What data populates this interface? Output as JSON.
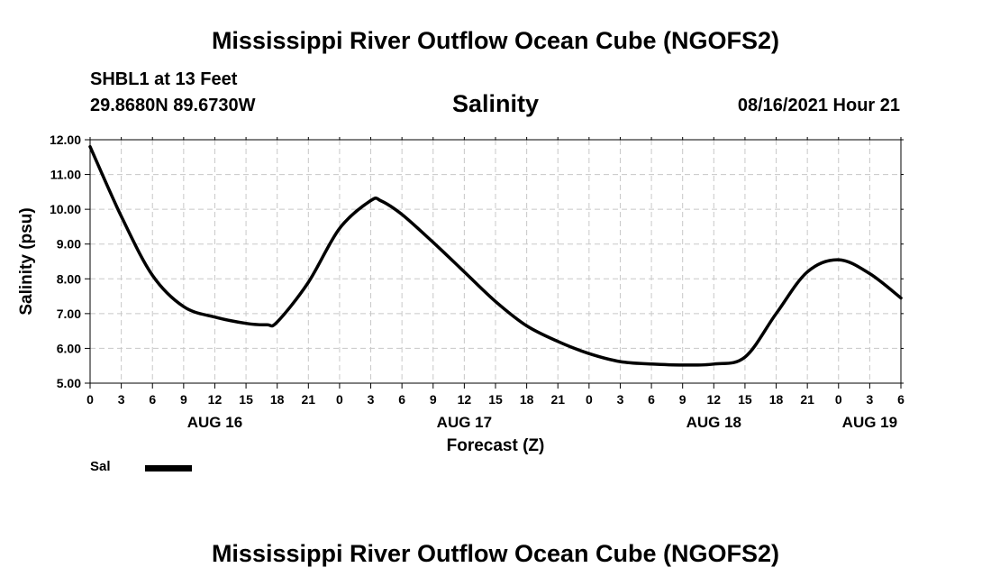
{
  "header": {
    "title": "Mississippi River Outflow Ocean Cube (NGOFS2)",
    "station": "SHBL1 at 13 Feet",
    "coordinates": "29.8680N  89.6730W",
    "parameter": "Salinity",
    "datetime": "08/16/2021 Hour 21"
  },
  "legend": {
    "label": "Sal",
    "color": "#000000"
  },
  "footer": {
    "title": "Mississippi River Outflow Ocean Cube (NGOFS2)"
  },
  "chart_data": {
    "type": "line",
    "title": "Salinity",
    "xlabel": "Forecast (Z)",
    "ylabel": "Salinity (psu)",
    "xlim": [
      0,
      78
    ],
    "ylim": [
      5,
      12
    ],
    "grid": true,
    "legend_position": "bottom-left",
    "x_ticks": [
      0,
      3,
      6,
      9,
      12,
      15,
      18,
      21,
      24,
      27,
      30,
      33,
      36,
      39,
      42,
      45,
      48,
      51,
      54,
      57,
      60,
      63,
      66,
      69,
      72,
      75,
      78
    ],
    "x_tick_labels": [
      "0",
      "3",
      "6",
      "9",
      "12",
      "15",
      "18",
      "21",
      "0",
      "3",
      "6",
      "9",
      "12",
      "15",
      "18",
      "21",
      "0",
      "3",
      "6",
      "9",
      "12",
      "15",
      "18",
      "21",
      "0",
      "3",
      "6"
    ],
    "date_labels": [
      {
        "x": 12,
        "label": "AUG 16"
      },
      {
        "x": 36,
        "label": "AUG 17"
      },
      {
        "x": 60,
        "label": "AUG 18"
      },
      {
        "x": 75,
        "label": "AUG 19"
      }
    ],
    "y_ticks": [
      5,
      6,
      7,
      8,
      9,
      10,
      11,
      12
    ],
    "y_tick_labels": [
      "5.00",
      "6.00",
      "7.00",
      "8.00",
      "9.00",
      "10.00",
      "11.00",
      "12.00"
    ],
    "series": [
      {
        "name": "Sal",
        "color": "#000000",
        "x": [
          0,
          3,
          6,
          9,
          12,
          15,
          17,
          18,
          21,
          24,
          27,
          28,
          30,
          33,
          36,
          39,
          42,
          45,
          48,
          51,
          54,
          57,
          60,
          63,
          66,
          69,
          72,
          75,
          78
        ],
        "values": [
          11.8,
          9.8,
          8.1,
          7.2,
          6.9,
          6.72,
          6.68,
          6.76,
          7.9,
          9.45,
          10.25,
          10.24,
          9.85,
          9.05,
          8.2,
          7.35,
          6.65,
          6.2,
          5.85,
          5.62,
          5.55,
          5.52,
          5.55,
          5.75,
          7.0,
          8.2,
          8.55,
          8.15,
          7.45
        ]
      }
    ]
  }
}
